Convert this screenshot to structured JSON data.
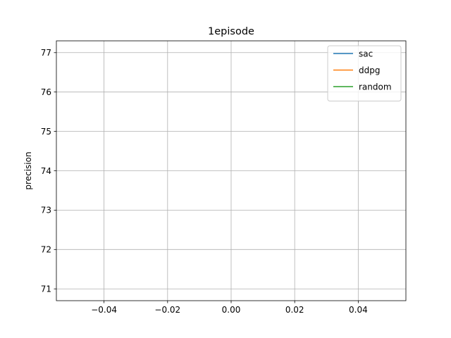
{
  "chart_data": {
    "type": "line",
    "title": "1episode",
    "xlabel": "",
    "ylabel": "precision",
    "xlim": [
      -0.055,
      0.055
    ],
    "ylim": [
      70.7,
      77.3
    ],
    "xticks": [
      -0.04,
      -0.02,
      0.0,
      0.02,
      0.04
    ],
    "xtick_labels": [
      "−0.04",
      "−0.02",
      "0.00",
      "0.02",
      "0.04"
    ],
    "yticks": [
      71,
      72,
      73,
      74,
      75,
      76,
      77
    ],
    "ytick_labels": [
      "71",
      "72",
      "73",
      "74",
      "75",
      "76",
      "77"
    ],
    "grid": true,
    "legend_position": "top-right",
    "series": [
      {
        "name": "sac",
        "color": "#1f77b4",
        "x": [],
        "y": []
      },
      {
        "name": "ddpg",
        "color": "#ff7f0e",
        "x": [],
        "y": []
      },
      {
        "name": "random",
        "color": "#2ca02c",
        "x": [],
        "y": []
      }
    ]
  }
}
